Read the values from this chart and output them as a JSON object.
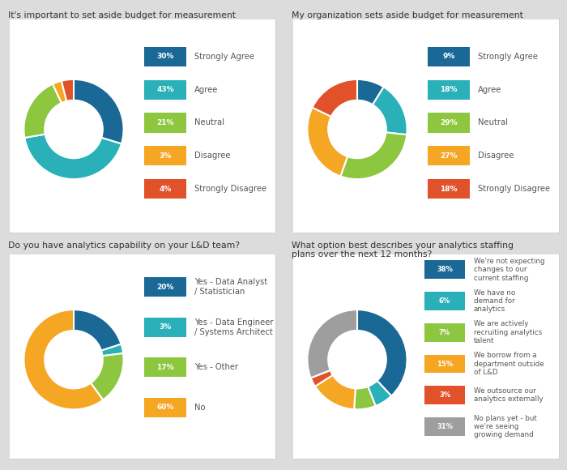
{
  "bg_color": "#dcdcdc",
  "card_color": "#ffffff",
  "chart1": {
    "title": "It's important to set aside budget for measurement",
    "values": [
      30,
      43,
      21,
      3,
      4
    ],
    "labels": [
      "Strongly Agree",
      "Agree",
      "Neutral",
      "Disagree",
      "Strongly Disagree"
    ],
    "percents": [
      "30%",
      "43%",
      "21%",
      "3%",
      "4%"
    ],
    "colors": [
      "#1a6896",
      "#2ab0b8",
      "#8dc63f",
      "#f5a623",
      "#e2522a"
    ]
  },
  "chart2": {
    "title": "My organization sets aside budget for measurement",
    "values": [
      9,
      18,
      29,
      27,
      18
    ],
    "labels": [
      "Strongly Agree",
      "Agree",
      "Neutral",
      "Disagree",
      "Strongly Disagree"
    ],
    "percents": [
      "9%",
      "18%",
      "29%",
      "27%",
      "18%"
    ],
    "colors": [
      "#1a6896",
      "#2ab0b8",
      "#8dc63f",
      "#f5a623",
      "#e2522a"
    ]
  },
  "chart3": {
    "title": "Do you have analytics capability on your L&D team?",
    "values": [
      20,
      3,
      17,
      60
    ],
    "labels": [
      "Yes - Data Analyst\n/ Statistician",
      "Yes - Data Engineer\n/ Systems Architect",
      "Yes - Other",
      "No"
    ],
    "percents": [
      "20%",
      "3%",
      "17%",
      "60%"
    ],
    "colors": [
      "#1a6896",
      "#2ab0b8",
      "#8dc63f",
      "#f5a623"
    ]
  },
  "chart4": {
    "title": "What option best describes your analytics staffing\nplans over the next 12 months?",
    "values": [
      38,
      6,
      7,
      15,
      3,
      31
    ],
    "labels": [
      "We're not expecting\nchanges to our\ncurrent staffing",
      "We have no\ndemand for\nanalytics",
      "We are actively\nrecruiting analytics\ntalent",
      "We borrow from a\ndepartment outside\nof L&D",
      "We outsource our\nanalytics externally",
      "No plans yet - but\nwe're seeing\ngrowing demand"
    ],
    "percents": [
      "38%",
      "6%",
      "7%",
      "15%",
      "3%",
      "31%"
    ],
    "colors": [
      "#1a6896",
      "#2ab0b8",
      "#8dc63f",
      "#f5a623",
      "#e2522a",
      "#9e9e9e"
    ]
  },
  "title_fontsize": 7.8,
  "legend_fontsize": 7.2,
  "pct_fontsize": 6.5
}
